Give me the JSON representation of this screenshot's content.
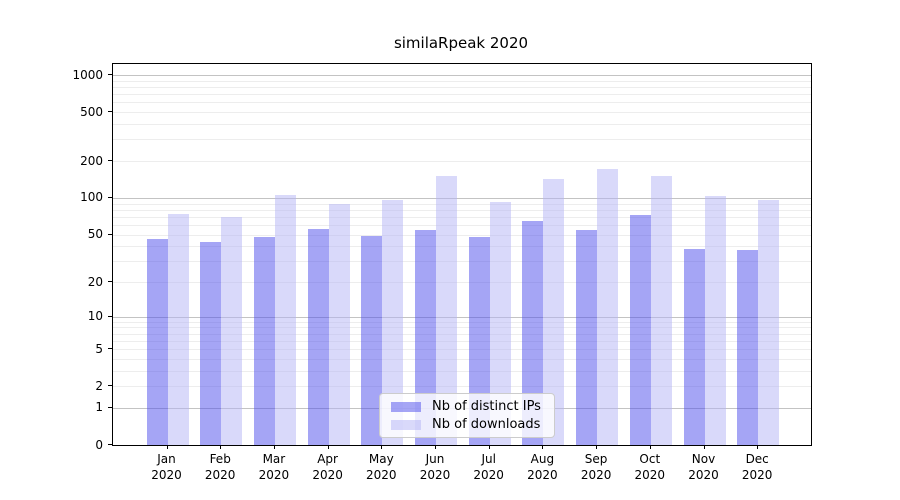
{
  "title": "similaRpeak 2020",
  "chart_data": {
    "type": "bar",
    "title": "similaRpeak 2020",
    "categories": [
      "Jan",
      "Feb",
      "Mar",
      "Apr",
      "May",
      "Jun",
      "Jul",
      "Aug",
      "Sep",
      "Oct",
      "Nov",
      "Dec"
    ],
    "year_label": "2020",
    "series": [
      {
        "name": "Nb of distinct IPs",
        "display_color": "#a5a5f5",
        "fill": "rgba(75,75,235,0.5)",
        "values": [
          46,
          43,
          48,
          55,
          49,
          54,
          48,
          65,
          54,
          72,
          38,
          37
        ]
      },
      {
        "name": "Nb of downloads",
        "display_color": "#d9d9fa",
        "fill": "rgba(179,179,245,0.5)",
        "values": [
          74,
          70,
          105,
          90,
          96,
          152,
          93,
          144,
          173,
          150,
          104,
          97
        ]
      }
    ],
    "yscale": "log1p",
    "ylim": [
      0,
      1200
    ],
    "y_ticks": [
      0,
      1,
      2,
      5,
      10,
      20,
      50,
      100,
      200,
      500,
      1000
    ],
    "xlabel": "",
    "ylabel": "",
    "grid": true,
    "legend_position": "lower center",
    "grid_major_color": "#c3c3c3",
    "grid_minor_color": "#ededed"
  }
}
